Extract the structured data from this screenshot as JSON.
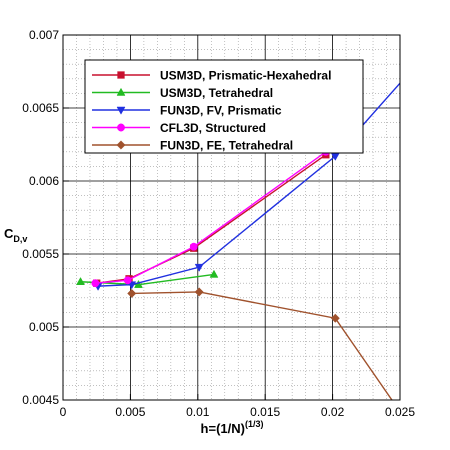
{
  "chart_data": {
    "type": "line",
    "xlabel": "h=(1/N)",
    "xlabel_sup": "(1/3)",
    "ylabel": "C",
    "ylabel_sub": "D,v",
    "xlim": [
      0,
      0.025
    ],
    "ylim": [
      0.0045,
      0.007
    ],
    "x_ticks": [
      0,
      0.005,
      0.01,
      0.015,
      0.02,
      0.025
    ],
    "x_tick_labels": [
      "0",
      "0.005",
      "0.01",
      "0.015",
      "0.02",
      "0.025"
    ],
    "y_ticks": [
      0.0045,
      0.005,
      0.0055,
      0.006,
      0.0065,
      0.007
    ],
    "y_tick_labels": [
      "0.0045",
      "0.005",
      "0.0055",
      "0.006",
      "0.0065",
      "0.007"
    ],
    "grid": "major solid, minor dotted",
    "legend_position": "top-left",
    "series": [
      {
        "name": "USM3D, Prismatic-Hexahedral",
        "color": "#c8102e",
        "marker": "square",
        "x": [
          0.0025,
          0.0049,
          0.0097,
          0.0195
        ],
        "y": [
          0.0053,
          0.00533,
          0.00554,
          0.00618
        ]
      },
      {
        "name": "USM3D, Tetrahedral",
        "color": "#22bb22",
        "marker": "triangle-up",
        "x": [
          0.0013,
          0.0056,
          0.0112
        ],
        "y": [
          0.00531,
          0.00529,
          0.00536
        ]
      },
      {
        "name": "FUN3D, FV, Prismatic",
        "color": "#2030e0",
        "marker": "triangle-down",
        "x": [
          0.0026,
          0.0051,
          0.0101,
          0.0202,
          0.025
        ],
        "y": [
          0.00528,
          0.00529,
          0.00541,
          0.00617,
          0.00667
        ]
      },
      {
        "name": "CFL3D, Structured",
        "color": "#ff00ff",
        "marker": "circle",
        "x": [
          0.0024,
          0.0048,
          0.0097,
          0.0195
        ],
        "y": [
          0.0053,
          0.00532,
          0.00555,
          0.0062
        ]
      },
      {
        "name": "FUN3D, FE, Tetrahedral",
        "color": "#a0522d",
        "marker": "diamond",
        "x": [
          0.0051,
          0.0101,
          0.0202,
          0.025
        ],
        "y": [
          0.00523,
          0.00524,
          0.00506,
          0.00442
        ]
      }
    ]
  }
}
